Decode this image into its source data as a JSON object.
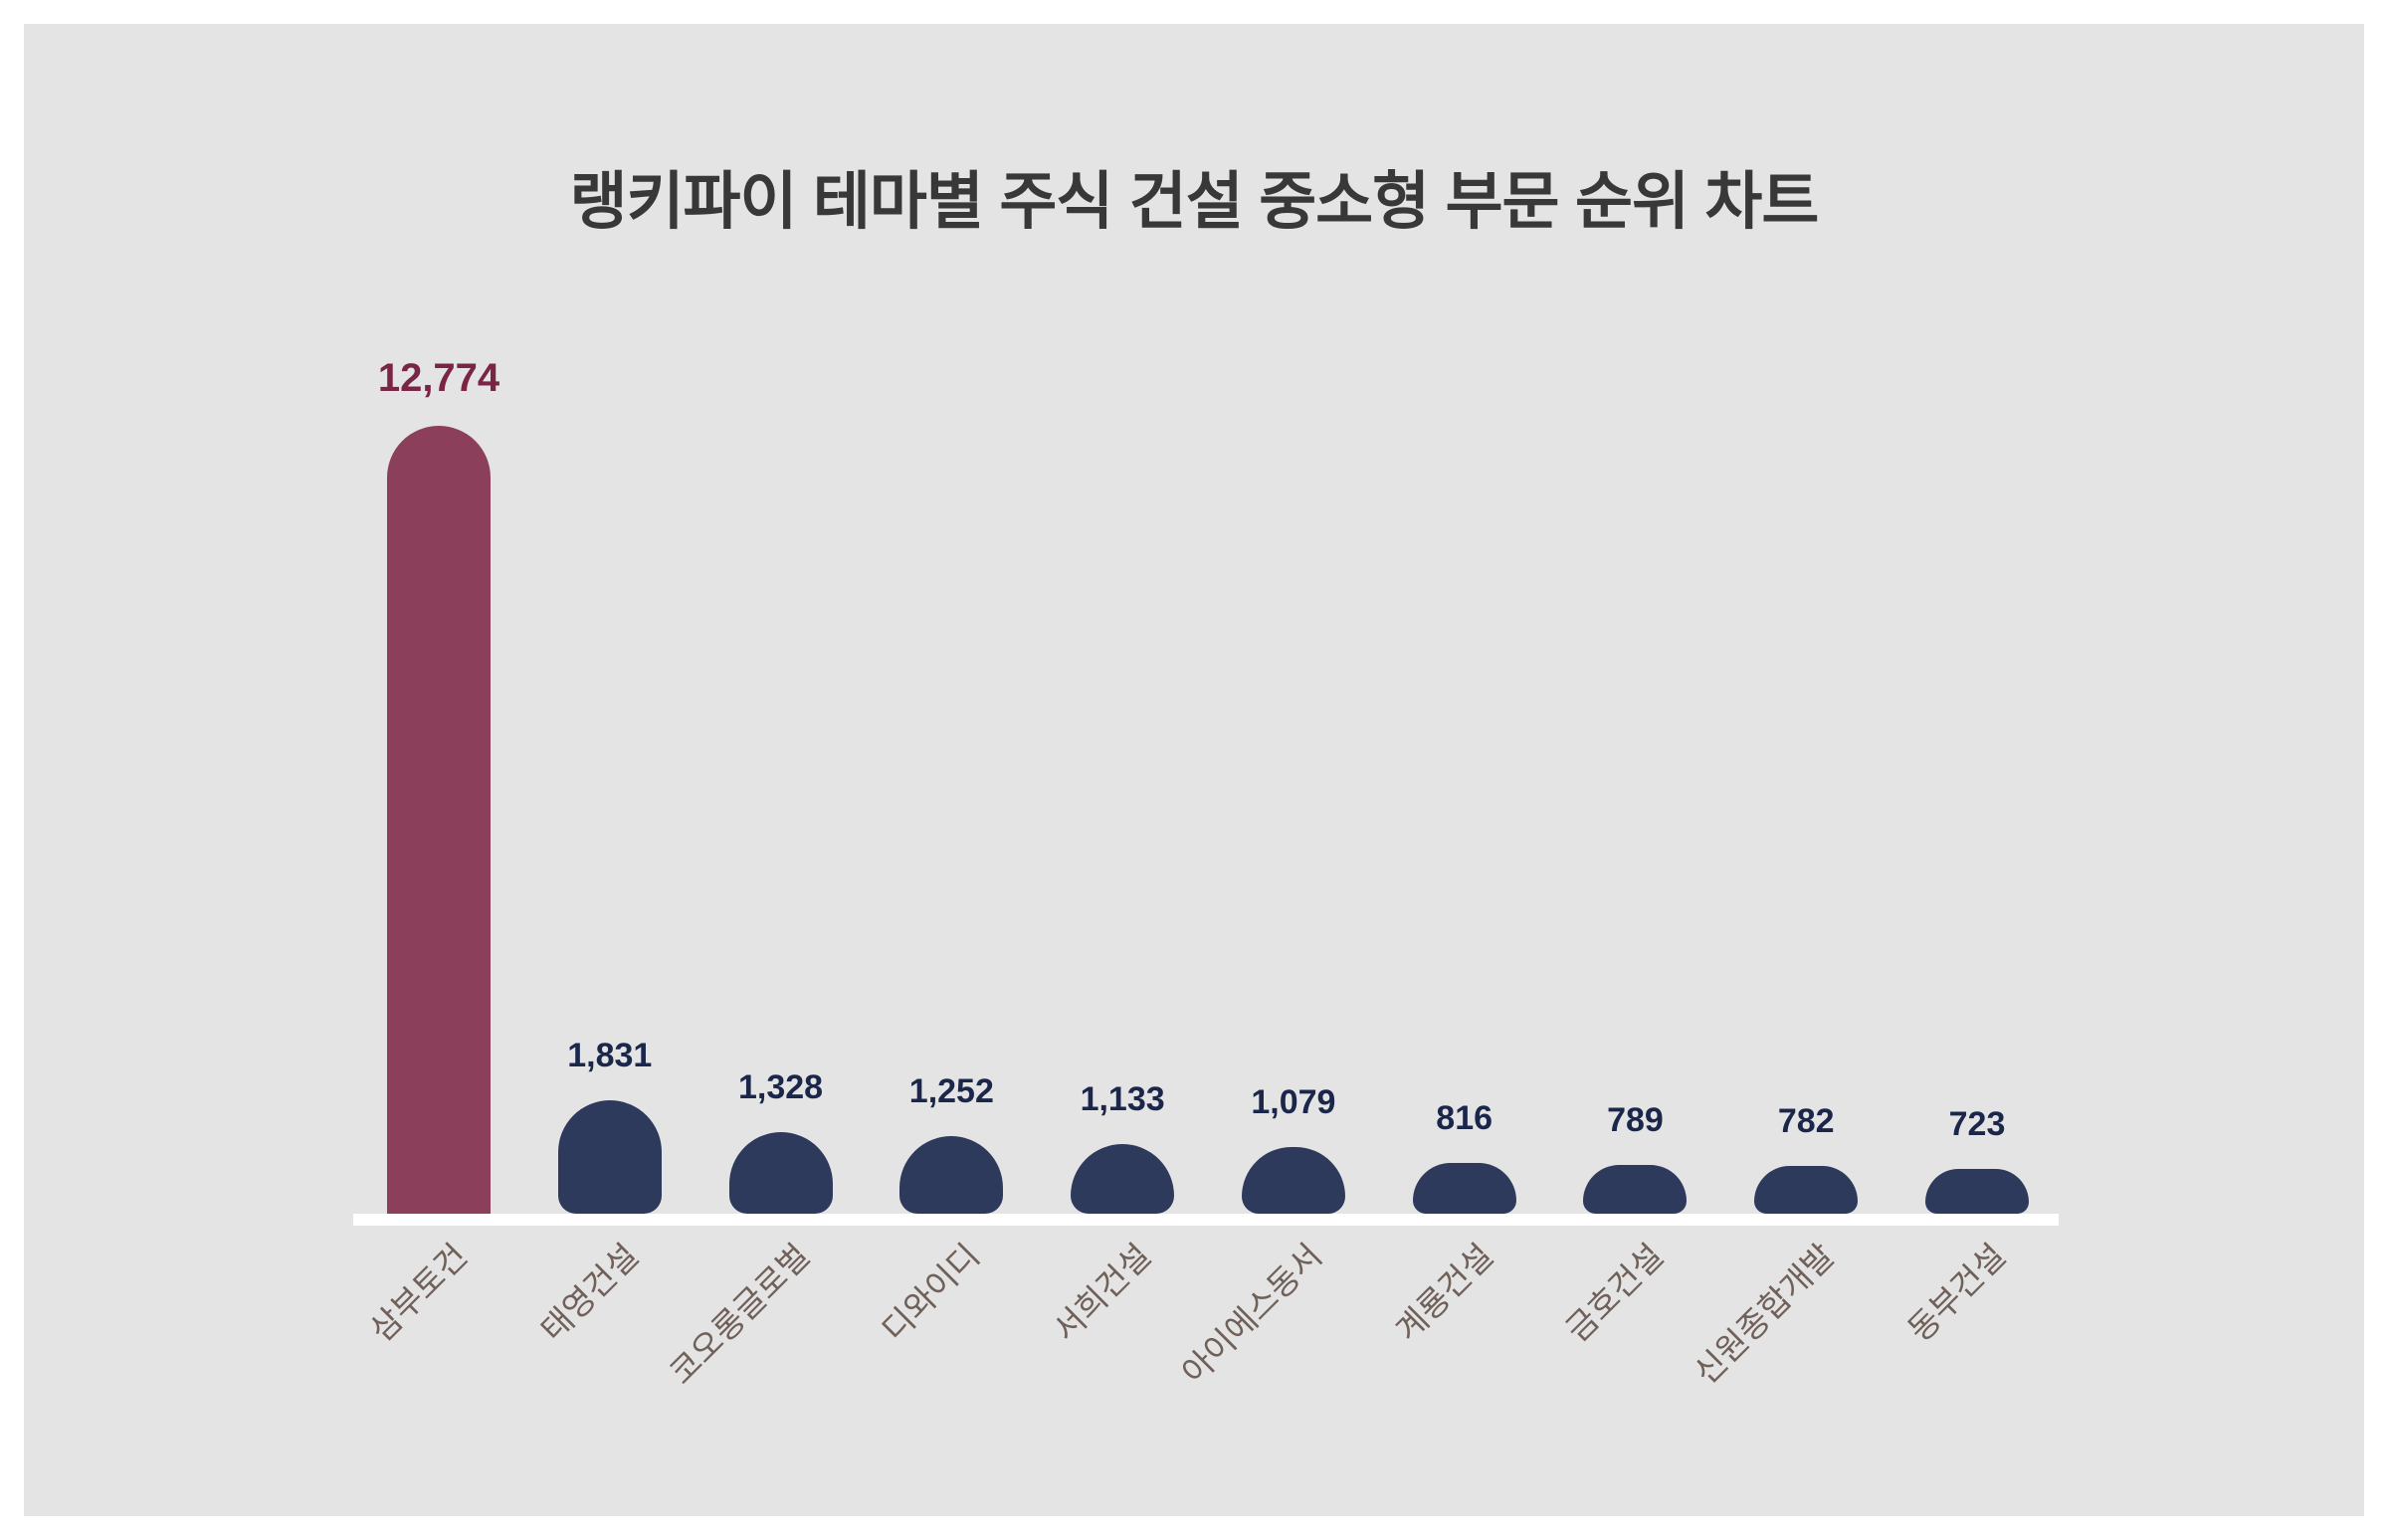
{
  "page": {
    "background_frame_color": "#FFFFFF",
    "panel_background_color": "#E5E4E4"
  },
  "colors": {
    "title": "#383838",
    "bar_default": "#2D3A5B",
    "bar_highlight": "#8C3F5A",
    "value_label_default": "#1B274A",
    "value_label_highlight": "#7A2546",
    "category_label": "#6F6059",
    "baseline": "#FFFFFF"
  },
  "chart_data": {
    "type": "bar",
    "title": "랭키파이 테마별 주식 건설 중소형 부문 순위 차트",
    "categories": [
      "삼부토건",
      "태영건설",
      "코오롱글로벌",
      "디와이디",
      "서희건설",
      "아이에스동서",
      "계룡건설",
      "금호건설",
      "신원종합개발",
      "동부건설"
    ],
    "values": [
      12774,
      1831,
      1328,
      1252,
      1133,
      1079,
      816,
      789,
      782,
      723
    ],
    "value_labels": [
      "12,774",
      "1,831",
      "1,328",
      "1,252",
      "1,133",
      "1,079",
      "816",
      "789",
      "782",
      "723"
    ],
    "highlight_index": 0,
    "xlabel": "",
    "ylabel": "",
    "ylim": [
      0,
      12774
    ],
    "grid": false,
    "legend": false,
    "y_axis_visible": false,
    "x_axis_style": "white baseline strip, category labels rotated 45 degrees",
    "bar_colors": {
      "default": "#2D3A5B",
      "highlight": "#8C3F5A"
    }
  }
}
